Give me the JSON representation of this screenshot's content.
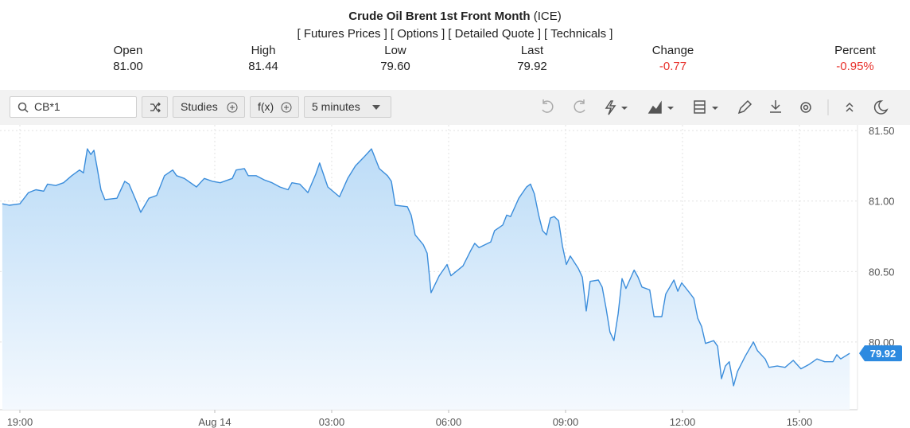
{
  "header": {
    "title": "Crude Oil Brent 1st Front Month",
    "exchange": "(ICE)",
    "links": [
      "[ Futures Prices ]",
      "[ Options ]",
      "[ Detailed Quote ]",
      "[ Technicals ]"
    ]
  },
  "quote": [
    {
      "label": "Open",
      "value": "81.00"
    },
    {
      "label": "High",
      "value": "81.44"
    },
    {
      "label": "Low",
      "value": "79.60"
    },
    {
      "label": "Last",
      "value": "79.92"
    },
    {
      "label": "Change",
      "value": "-0.77",
      "color": "#e8322c"
    },
    {
      "label": "Percent",
      "value": "-0.95%",
      "color": "#e8322c"
    }
  ],
  "toolbar": {
    "symbol": "CB*1",
    "studies": "Studies",
    "functions": "f(x)",
    "interval": "5 minutes"
  },
  "chart_data": {
    "type": "line",
    "x": [
      18.55,
      18.73,
      19.0,
      19.22,
      19.41,
      19.61,
      19.71,
      19.92,
      20.12,
      20.33,
      20.53,
      20.63,
      20.73,
      20.82,
      20.9,
      20.98,
      21.08,
      21.18,
      21.49,
      21.69,
      21.8,
      22.0,
      22.1,
      22.31,
      22.51,
      22.71,
      22.92,
      23.02,
      23.22,
      23.53,
      23.73,
      23.94,
      24.14,
      24.45,
      24.55,
      24.76,
      24.86,
      25.06,
      25.27,
      25.47,
      25.67,
      25.88,
      25.98,
      26.18,
      26.39,
      26.59,
      26.69,
      26.9,
      27.2,
      27.41,
      27.61,
      27.82,
      28.02,
      28.22,
      28.43,
      28.53,
      28.63,
      28.94,
      29.04,
      29.14,
      29.35,
      29.45,
      29.55,
      29.76,
      29.96,
      30.06,
      30.37,
      30.57,
      30.67,
      30.78,
      31.08,
      31.18,
      31.39,
      31.49,
      31.59,
      31.8,
      32.0,
      32.1,
      32.2,
      32.31,
      32.41,
      32.51,
      32.61,
      32.71,
      32.82,
      32.92,
      33.02,
      33.12,
      33.33,
      33.43,
      33.53,
      33.63,
      33.84,
      33.94,
      34.04,
      34.14,
      34.24,
      34.35,
      34.45,
      34.55,
      34.76,
      34.86,
      34.96,
      35.16,
      35.27,
      35.47,
      35.57,
      35.78,
      35.88,
      35.98,
      36.18,
      36.29,
      36.39,
      36.49,
      36.59,
      36.8,
      36.9,
      37.0,
      37.1,
      37.2,
      37.31,
      37.41,
      37.61,
      37.82,
      37.92,
      38.12,
      38.22,
      38.43,
      38.63,
      38.84,
      39.04,
      39.24,
      39.45,
      39.65,
      39.86,
      39.96,
      40.06,
      40.29
    ],
    "series": [
      {
        "name": "CB*1",
        "color": "#3b8ddb",
        "values": [
          80.98,
          80.97,
          80.98,
          81.06,
          81.08,
          81.07,
          81.12,
          81.11,
          81.13,
          81.18,
          81.22,
          81.2,
          81.37,
          81.33,
          81.36,
          81.24,
          81.08,
          81.01,
          81.02,
          81.14,
          81.12,
          80.99,
          80.92,
          81.02,
          81.04,
          81.18,
          81.22,
          81.18,
          81.16,
          81.1,
          81.16,
          81.14,
          81.13,
          81.16,
          81.22,
          81.23,
          81.18,
          81.18,
          81.15,
          81.13,
          81.1,
          81.08,
          81.13,
          81.12,
          81.06,
          81.19,
          81.27,
          81.1,
          81.03,
          81.16,
          81.25,
          81.31,
          81.37,
          81.23,
          81.18,
          81.14,
          80.97,
          80.96,
          80.9,
          80.76,
          80.69,
          80.63,
          80.35,
          80.47,
          80.55,
          80.47,
          80.54,
          80.65,
          80.7,
          80.67,
          80.71,
          80.79,
          80.83,
          80.9,
          80.89,
          81.02,
          81.1,
          81.12,
          81.05,
          80.9,
          80.79,
          80.76,
          80.88,
          80.89,
          80.86,
          80.68,
          80.55,
          80.61,
          80.52,
          80.46,
          80.22,
          80.43,
          80.44,
          80.39,
          80.24,
          80.07,
          80.01,
          80.2,
          80.45,
          80.38,
          80.51,
          80.46,
          80.39,
          80.37,
          80.18,
          80.18,
          80.34,
          80.44,
          80.36,
          80.42,
          80.35,
          80.31,
          80.17,
          80.11,
          79.99,
          80.01,
          79.97,
          79.74,
          79.83,
          79.86,
          79.69,
          79.79,
          79.9,
          80.0,
          79.94,
          79.88,
          79.82,
          79.83,
          79.82,
          79.87,
          79.81,
          79.84,
          79.88,
          79.86,
          79.86,
          79.91,
          79.88,
          79.92
        ]
      }
    ],
    "xlim": [
      18.49,
      40.49
    ],
    "xticks": [
      {
        "value": 19,
        "label": "19:00"
      },
      {
        "value": 24,
        "label": "Aug 14"
      },
      {
        "value": 27,
        "label": "03:00"
      },
      {
        "value": 30,
        "label": "06:00"
      },
      {
        "value": 33,
        "label": "09:00"
      },
      {
        "value": 36,
        "label": "12:00"
      },
      {
        "value": 39,
        "label": "15:00"
      }
    ],
    "ylim": [
      79.52,
      81.54
    ],
    "yticks": [
      {
        "value": 80,
        "label": "80.00"
      },
      {
        "value": 80.5,
        "label": "80.50"
      },
      {
        "value": 81,
        "label": "81.00"
      },
      {
        "value": 81.5,
        "label": "81.50"
      }
    ],
    "grid": true
  }
}
